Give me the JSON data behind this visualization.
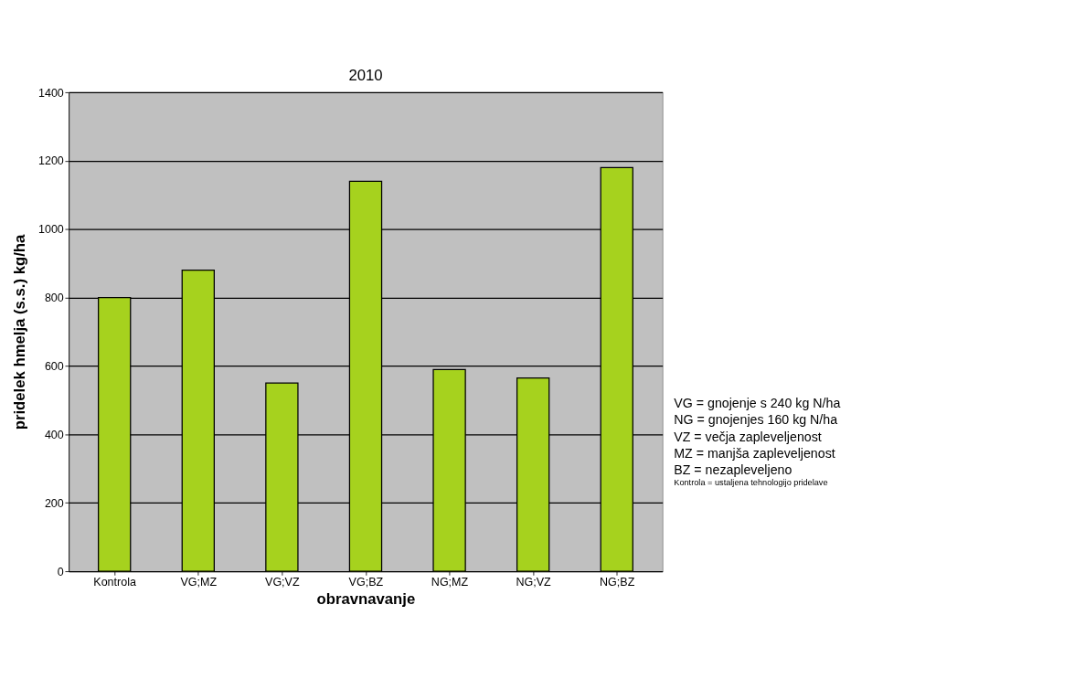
{
  "chart_data": {
    "type": "bar",
    "title": "2010",
    "xlabel": "obravnavanje",
    "ylabel": "pridelek hmelja (s.s.) kg/ha",
    "categories": [
      "Kontrola",
      "VG;MZ",
      "VG;VZ",
      "VG;BZ",
      "NG;MZ",
      "NG;VZ",
      "NG;BZ"
    ],
    "series": [
      {
        "color": "#a6d21e",
        "values": [
          800,
          880,
          550,
          1140,
          590,
          565,
          1180
        ]
      }
    ],
    "ylim": [
      0,
      1400
    ],
    "yticks": [
      0,
      200,
      400,
      600,
      800,
      1000,
      1200,
      1400
    ],
    "grid": "y",
    "annotations": [
      "VG = gnojenje s 240 kg N/ha",
      "NG = gnojenjes 160 kg N/ha",
      "VZ = večja zapleveljenost",
      "MZ = manjša zapleveljenost",
      "BZ = nezapleveljeno",
      "Kontrola = ustaljena tehnologijo pridelave"
    ]
  }
}
